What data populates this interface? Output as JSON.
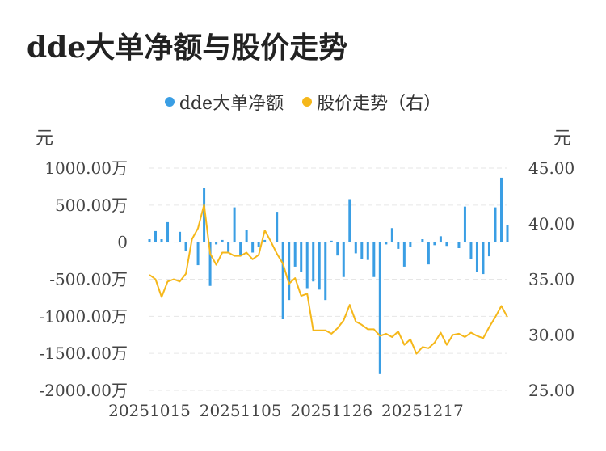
{
  "title": "dde大单净额与股价走势",
  "colors": {
    "bar": "#3a9ee4",
    "line": "#f5b71a",
    "grid": "#e6e6e6"
  },
  "chart_data": {
    "type": "bar+line",
    "title": "dde大单净额与股价走势",
    "legend": [
      {
        "name": "dde大单净额",
        "color": "#3a9ee4"
      },
      {
        "name": "股价走势（右）",
        "color": "#f5b71a"
      }
    ],
    "legend_position": "top-center",
    "left_axis": {
      "unit": "元",
      "ticks": [
        "1000.00万",
        "500.00万",
        "0",
        "-500.00万",
        "-1000.00万",
        "-1500.00万",
        "-2000.00万"
      ],
      "tick_values": [
        1000,
        500,
        0,
        -500,
        -1000,
        -1500,
        -2000
      ],
      "ylim": [
        -2000,
        1000
      ]
    },
    "right_axis": {
      "unit": "元",
      "ticks": [
        "45.00",
        "40.00",
        "35.00",
        "30.00",
        "25.00"
      ],
      "tick_values": [
        45,
        40,
        35,
        30,
        25
      ],
      "ylim": [
        25,
        45
      ]
    },
    "x_ticks": [
      {
        "label": "20251015",
        "index": 0
      },
      {
        "label": "20251105",
        "index": 15
      },
      {
        "label": "20251126",
        "index": 30
      },
      {
        "label": "20251217",
        "index": 45
      }
    ],
    "grid": true,
    "bars": [
      40,
      150,
      40,
      270,
      0,
      140,
      -120,
      0,
      -310,
      730,
      -590,
      -30,
      30,
      -130,
      470,
      -170,
      160,
      -140,
      -60,
      30,
      0,
      410,
      -1040,
      -780,
      -330,
      -400,
      -620,
      -530,
      -640,
      -780,
      20,
      -180,
      -470,
      580,
      -150,
      -230,
      -240,
      -470,
      -1780,
      -30,
      190,
      -90,
      -330,
      -60,
      0,
      40,
      -300,
      -40,
      80,
      -50,
      0,
      -80,
      480,
      -230,
      -400,
      -430,
      -190,
      470,
      870,
      230
    ],
    "price": [
      35.4,
      35.0,
      33.4,
      34.8,
      35.0,
      34.8,
      35.5,
      38.6,
      39.6,
      41.7,
      37.3,
      36.3,
      37.4,
      37.4,
      37.1,
      37.1,
      37.4,
      36.8,
      37.2,
      39.4,
      38.4,
      37.3,
      36.4,
      34.6,
      35.1,
      33.5,
      33.7,
      30.4,
      30.4,
      30.4,
      30.1,
      30.6,
      31.3,
      32.7,
      31.2,
      30.9,
      30.5,
      30.5,
      29.9,
      30.1,
      29.8,
      30.3,
      29.1,
      29.6,
      28.3,
      28.9,
      28.8,
      29.3,
      30.2,
      29.1,
      30.0,
      30.1,
      29.8,
      30.2,
      29.9,
      29.7,
      30.7,
      31.6,
      32.6,
      31.6
    ]
  }
}
